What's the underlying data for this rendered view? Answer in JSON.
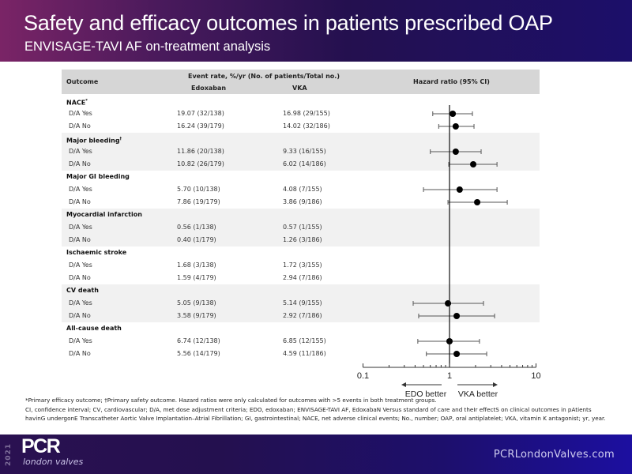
{
  "header": {
    "title": "Safety and efficacy outcomes in patients prescribed OAP",
    "subtitle": "ENVISAGE-TAVI AF on-treatment analysis"
  },
  "table": {
    "col_outcome": "Outcome",
    "col_event_rate": "Event rate, %/yr (No. of patients/Total no.)",
    "col_edoxaban": "Edoxaban",
    "col_vka": "VKA",
    "col_hr": "Hazard ratio (95% CI)"
  },
  "chart_data": {
    "type": "forest",
    "title": "Hazard ratio (95% CI)",
    "xscale": "log",
    "xlim": [
      0.1,
      10
    ],
    "xticks": [
      "0.1",
      "1",
      "10"
    ],
    "reference_line": 1,
    "direction_labels": {
      "left": "EDO better",
      "right": "VKA better"
    },
    "groups": [
      {
        "name": "NACE",
        "marker": "*",
        "rows": [
          {
            "label": "D/A Yes",
            "edoxaban": "19.07 (32/138)",
            "vka": "16.98 (29/155)",
            "hr": 1.09,
            "lo": 0.64,
            "hi": 1.84
          },
          {
            "label": "D/A No",
            "edoxaban": "16.24 (39/179)",
            "vka": "14.02 (32/186)",
            "hr": 1.18,
            "lo": 0.75,
            "hi": 1.92
          }
        ]
      },
      {
        "name": "Major bleeding",
        "marker": "†",
        "rows": [
          {
            "label": "D/A Yes",
            "edoxaban": "11.86 (20/138)",
            "vka": "9.33 (16/155)",
            "hr": 1.18,
            "lo": 0.6,
            "hi": 2.32
          },
          {
            "label": "D/A No",
            "edoxaban": "10.82 (26/179)",
            "vka": "6.02 (14/186)",
            "hr": 1.88,
            "lo": 0.98,
            "hi": 3.54
          }
        ]
      },
      {
        "name": "Major GI bleeding",
        "marker": "",
        "rows": [
          {
            "label": "D/A Yes",
            "edoxaban": "5.70 (10/138)",
            "vka": "4.08 (7/155)",
            "hr": 1.31,
            "lo": 0.5,
            "hi": 3.54
          },
          {
            "label": "D/A No",
            "edoxaban": "7.86 (19/179)",
            "vka": "3.86 (9/186)",
            "hr": 2.09,
            "lo": 0.96,
            "hi": 4.65
          }
        ]
      },
      {
        "name": "Myocardial infarction",
        "marker": "",
        "rows": [
          {
            "label": "D/A Yes",
            "edoxaban": "0.56 (1/138)",
            "vka": "0.57 (1/155)",
            "hr": null,
            "lo": null,
            "hi": null
          },
          {
            "label": "D/A No",
            "edoxaban": "0.40 (1/179)",
            "vka": "1.26 (3/186)",
            "hr": null,
            "lo": null,
            "hi": null
          }
        ]
      },
      {
        "name": "Ischaemic stroke",
        "marker": "",
        "rows": [
          {
            "label": "D/A Yes",
            "edoxaban": "1.68 (3/138)",
            "vka": "1.72 (3/155)",
            "hr": null,
            "lo": null,
            "hi": null
          },
          {
            "label": "D/A No",
            "edoxaban": "1.59 (4/179)",
            "vka": "2.94 (7/186)",
            "hr": null,
            "lo": null,
            "hi": null
          }
        ]
      },
      {
        "name": "CV death",
        "marker": "",
        "rows": [
          {
            "label": "D/A Yes",
            "edoxaban": "5.05 (9/138)",
            "vka": "5.14 (9/155)",
            "hr": 0.96,
            "lo": 0.38,
            "hi": 2.47
          },
          {
            "label": "D/A No",
            "edoxaban": "3.58 (9/179)",
            "vka": "2.92 (7/186)",
            "hr": 1.21,
            "lo": 0.44,
            "hi": 3.32
          }
        ]
      },
      {
        "name": "All-cause death",
        "marker": "",
        "rows": [
          {
            "label": "D/A Yes",
            "edoxaban": "6.74 (12/138)",
            "vka": "6.85 (12/155)",
            "hr": 1.0,
            "lo": 0.43,
            "hi": 2.22
          },
          {
            "label": "D/A No",
            "edoxaban": "5.56 (14/179)",
            "vka": "4.59 (11/186)",
            "hr": 1.21,
            "lo": 0.54,
            "hi": 2.69
          }
        ]
      }
    ]
  },
  "footnotes": {
    "line1": "*Primary efficacy outcome; †Primary safety outcome. Hazard ratios were only calculated for outcomes with >5 events in both treatment groups.",
    "line2": "CI, confidence interval; CV, cardiovascular; D/A, met dose adjustment criteria; EDO, edoxaban; ENVISAGE-TAVI AF, EdoxabaN Versus standard of care and theIr effectS on clinical outcomes in pAtients havinG undergonE Transcatheter Aortic Valve Implantation–Atrial Fibrillation; GI, gastrointestinal; NACE, net adverse clinical events; No., number; OAP, oral antiplatelet; VKA, vitamin K antagonist; yr, year."
  },
  "footer": {
    "year": "2021",
    "logo_main": "PCR",
    "logo_sub": "london valves",
    "website": "PCRLondonValves.com"
  }
}
